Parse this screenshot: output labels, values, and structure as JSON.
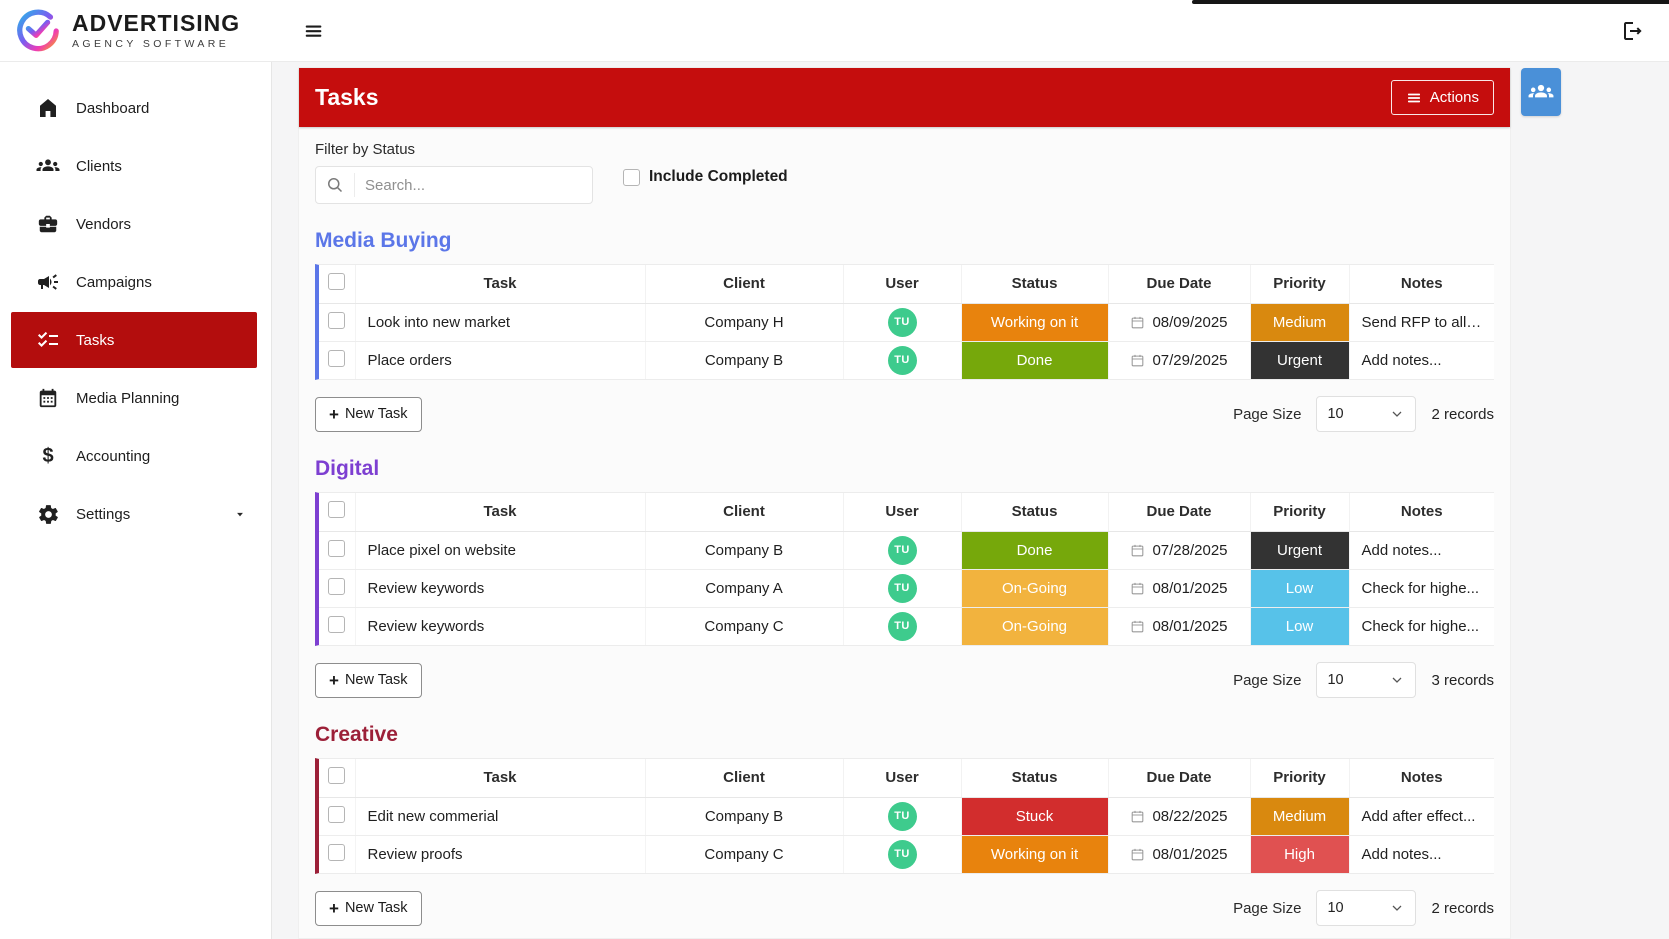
{
  "topbar": {
    "brand_title": "ADVERTISING",
    "brand_subtitle": "AGENCY SOFTWARE"
  },
  "page": {
    "title": "Tasks",
    "actions_button": "Actions"
  },
  "filters": {
    "label": "Filter by Status",
    "search_placeholder": "Search...",
    "include_completed": "Include Completed",
    "include_completed_checked": false
  },
  "sidebar": {
    "items": [
      {
        "id": "dashboard",
        "label": "Dashboard",
        "icon": "home-icon",
        "active": false
      },
      {
        "id": "clients",
        "label": "Clients",
        "icon": "people-group-icon",
        "active": false
      },
      {
        "id": "vendors",
        "label": "Vendors",
        "icon": "briefcase-icon",
        "active": false
      },
      {
        "id": "campaigns",
        "label": "Campaigns",
        "icon": "megaphone-icon",
        "active": false
      },
      {
        "id": "tasks",
        "label": "Tasks",
        "icon": "checklist-icon",
        "active": true
      },
      {
        "id": "media-planning",
        "label": "Media Planning",
        "icon": "calendar-icon",
        "active": false
      },
      {
        "id": "accounting",
        "label": "Accounting",
        "icon": "dollar-icon",
        "active": false
      },
      {
        "id": "settings",
        "label": "Settings",
        "icon": "gear-icon",
        "active": false,
        "has_caret": true
      }
    ]
  },
  "columns": [
    "Task",
    "Client",
    "User",
    "Status",
    "Due Date",
    "Priority",
    "Notes"
  ],
  "sections": [
    {
      "name": "Media Buying",
      "accent": "#5b76e8",
      "rows": [
        {
          "task": "Look into new market",
          "client": "Company H",
          "user": "TU",
          "status": "Working on it",
          "due": "08/09/2025",
          "priority": "Medium",
          "notes": "Send RFP to all ..."
        },
        {
          "task": "Place orders",
          "client": "Company B",
          "user": "TU",
          "status": "Done",
          "due": "07/29/2025",
          "priority": "Urgent",
          "notes": "Add notes..."
        }
      ],
      "new_task": "New Task",
      "page_size_label": "Page Size",
      "page_size": "10",
      "records": "2 records"
    },
    {
      "name": "Digital",
      "accent": "#7d3fd1",
      "rows": [
        {
          "task": "Place pixel on website",
          "client": "Company B",
          "user": "TU",
          "status": "Done",
          "due": "07/28/2025",
          "priority": "Urgent",
          "notes": "Add notes..."
        },
        {
          "task": "Review keywords",
          "client": "Company A",
          "user": "TU",
          "status": "On-Going",
          "due": "08/01/2025",
          "priority": "Low",
          "notes": "Check for highe..."
        },
        {
          "task": "Review keywords",
          "client": "Company C",
          "user": "TU",
          "status": "On-Going",
          "due": "08/01/2025",
          "priority": "Low",
          "notes": "Check for highe..."
        }
      ],
      "new_task": "New Task",
      "page_size_label": "Page Size",
      "page_size": "10",
      "records": "3 records"
    },
    {
      "name": "Creative",
      "accent": "#9c2038",
      "rows": [
        {
          "task": "Edit new commerial",
          "client": "Company B",
          "user": "TU",
          "status": "Stuck",
          "due": "08/22/2025",
          "priority": "Medium",
          "notes": "Add after effect..."
        },
        {
          "task": "Review proofs",
          "client": "Company C",
          "user": "TU",
          "status": "Working on it",
          "due": "08/01/2025",
          "priority": "High",
          "notes": "Add notes..."
        }
      ],
      "new_task": "New Task",
      "page_size_label": "Page Size",
      "page_size": "10",
      "records": "2 records"
    }
  ],
  "colors": {
    "status": {
      "Working on it": "#e8830d",
      "Done": "#76a80b",
      "On-Going": "#f2b33e",
      "Stuck": "#d22d2d"
    },
    "priority": {
      "Medium": "#d9890f",
      "Urgent": "#333333",
      "Low": "#57c2e9",
      "High": "#e05151"
    },
    "avatar_bg": "#3ecb8d",
    "header_red": "#c50d0d",
    "sidebar_active_red": "#b30d0d",
    "blue_button": "#4a90d8"
  }
}
